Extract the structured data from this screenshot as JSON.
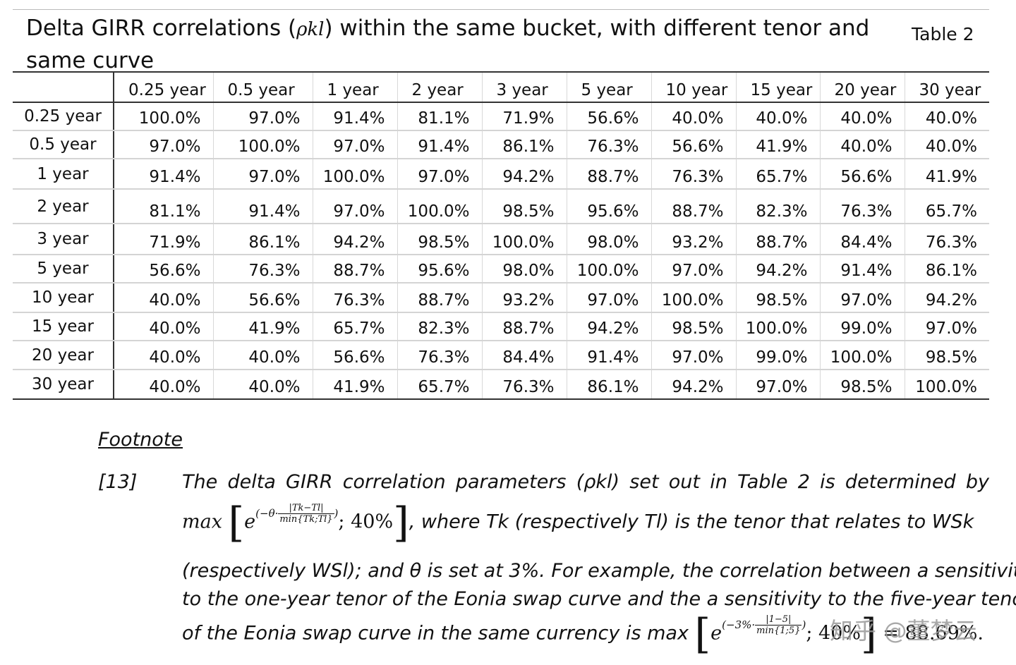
{
  "header": {
    "title_before": "Delta GIRR correlations (",
    "title_symbol": "ρkl",
    "title_after": ") within the same bucket, with different tenor and same curve",
    "table_label": "Table 2"
  },
  "table": {
    "columns": [
      "0.25 year",
      "0.5 year",
      "1 year",
      "2 year",
      "3 year",
      "5 year",
      "10 year",
      "15 year",
      "20 year",
      "30 year"
    ],
    "rows": [
      {
        "label": "0.25 year",
        "values": [
          "100.0%",
          "97.0%",
          "91.4%",
          "81.1%",
          "71.9%",
          "56.6%",
          "40.0%",
          "40.0%",
          "40.0%",
          "40.0%"
        ]
      },
      {
        "label": "0.5 year",
        "values": [
          "97.0%",
          "100.0%",
          "97.0%",
          "91.4%",
          "86.1%",
          "76.3%",
          "56.6%",
          "41.9%",
          "40.0%",
          "40.0%"
        ]
      },
      {
        "label": "1 year",
        "values": [
          "91.4%",
          "97.0%",
          "100.0%",
          "97.0%",
          "94.2%",
          "88.7%",
          "76.3%",
          "65.7%",
          "56.6%",
          "41.9%"
        ]
      },
      {
        "label": "2 year",
        "values": [
          "81.1%",
          "91.4%",
          "97.0%",
          "100.0%",
          "98.5%",
          "95.6%",
          "88.7%",
          "82.3%",
          "76.3%",
          "65.7%"
        ]
      },
      {
        "label": "3 year",
        "values": [
          "71.9%",
          "86.1%",
          "94.2%",
          "98.5%",
          "100.0%",
          "98.0%",
          "93.2%",
          "88.7%",
          "84.4%",
          "76.3%"
        ]
      },
      {
        "label": "5 year",
        "values": [
          "56.6%",
          "76.3%",
          "88.7%",
          "95.6%",
          "98.0%",
          "100.0%",
          "97.0%",
          "94.2%",
          "91.4%",
          "86.1%"
        ]
      },
      {
        "label": "10 year",
        "values": [
          "40.0%",
          "56.6%",
          "76.3%",
          "88.7%",
          "93.2%",
          "97.0%",
          "100.0%",
          "98.5%",
          "97.0%",
          "94.2%"
        ]
      },
      {
        "label": "15 year",
        "values": [
          "40.0%",
          "41.9%",
          "65.7%",
          "82.3%",
          "88.7%",
          "94.2%",
          "98.5%",
          "100.0%",
          "99.0%",
          "97.0%"
        ]
      },
      {
        "label": "20 year",
        "values": [
          "40.0%",
          "40.0%",
          "56.6%",
          "76.3%",
          "84.4%",
          "91.4%",
          "97.0%",
          "99.0%",
          "100.0%",
          "98.5%"
        ]
      },
      {
        "label": "30 year",
        "values": [
          "40.0%",
          "40.0%",
          "41.9%",
          "65.7%",
          "76.3%",
          "86.1%",
          "94.2%",
          "97.0%",
          "98.5%",
          "100.0%"
        ]
      }
    ]
  },
  "footnote": {
    "heading": "Footnote",
    "number": "[13]",
    "line1": "The delta GIRR correlation parameters (ρkl) set out in Table 2 is determined by",
    "line2_max": "max",
    "line2_exp_prefix": "(−θ·",
    "line2_frac_num": "|Tk−Tl|",
    "line2_frac_den": "min{Tk;Tl}",
    "line2_exp_suffix": ")",
    "line2_floor": "; 40%",
    "line2_text": ", where Tk (respectively Tl) is the tenor that relates to WSk",
    "line3": "(respectively WSl); and θ is set at 3%. For example, the correlation between a sensitivity",
    "line4": "to the one-year tenor of the Eonia swap curve and the a sensitivity to the five-year tenor",
    "line5_text": "of the Eonia swap curve in the same currency is max",
    "line5_exp_prefix": "(−3%·",
    "line5_frac_num": "|1−5|",
    "line5_frac_den": "min{1;5}",
    "line5_exp_suffix": ")",
    "line5_floor": "; 40%",
    "line5_result": " = 88.69%."
  },
  "watermark": "知乎 @董梦云"
}
